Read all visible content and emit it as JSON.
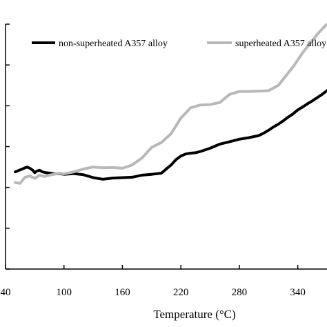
{
  "chart_data": {
    "type": "line",
    "title": "",
    "xlabel": "Temperature (°C)",
    "ylabel": "",
    "xlim": [
      40,
      370
    ],
    "ylim": [
      0,
      6
    ],
    "x_ticks": [
      40,
      100,
      160,
      220,
      280,
      340
    ],
    "x_tick_labels": [
      "40",
      "100",
      "160",
      "220",
      "280",
      "340"
    ],
    "y_ticks": [
      0,
      1,
      2,
      3,
      4,
      5,
      6
    ],
    "grid": false,
    "legend_position": "top",
    "series": [
      {
        "name": "non-superheated A357 alloy",
        "color": "#000000",
        "x": [
          50,
          54,
          58,
          62,
          65,
          68,
          70,
          72,
          75,
          78,
          82,
          86,
          90,
          95,
          100,
          110,
          120,
          130,
          140,
          150,
          160,
          170,
          180,
          190,
          200,
          205,
          210,
          215,
          220,
          225,
          230,
          235,
          240,
          250,
          260,
          270,
          280,
          290,
          300,
          305,
          310,
          315,
          320,
          325,
          330,
          335,
          340,
          345,
          350,
          355,
          360,
          365,
          370
        ],
        "y": [
          2.38,
          2.42,
          2.46,
          2.5,
          2.47,
          2.42,
          2.36,
          2.4,
          2.42,
          2.38,
          2.36,
          2.35,
          2.33,
          2.34,
          2.32,
          2.34,
          2.31,
          2.24,
          2.2,
          2.23,
          2.24,
          2.25,
          2.3,
          2.32,
          2.35,
          2.45,
          2.55,
          2.68,
          2.77,
          2.82,
          2.84,
          2.85,
          2.88,
          2.96,
          3.06,
          3.12,
          3.18,
          3.22,
          3.27,
          3.33,
          3.4,
          3.48,
          3.55,
          3.63,
          3.72,
          3.8,
          3.9,
          3.97,
          4.05,
          4.12,
          4.2,
          4.28,
          4.37
        ]
      },
      {
        "name": "superheated A357 alloy",
        "color": "#b8b8b8",
        "x": [
          50,
          55,
          60,
          65,
          70,
          75,
          80,
          85,
          90,
          95,
          100,
          110,
          120,
          130,
          140,
          150,
          160,
          170,
          180,
          190,
          200,
          210,
          220,
          230,
          240,
          250,
          260,
          270,
          280,
          290,
          300,
          310,
          320,
          325,
          330,
          335,
          340,
          345,
          350,
          355,
          360,
          365,
          370
        ],
        "y": [
          2.12,
          2.1,
          2.25,
          2.28,
          2.22,
          2.3,
          2.27,
          2.3,
          2.32,
          2.35,
          2.33,
          2.38,
          2.45,
          2.5,
          2.48,
          2.49,
          2.47,
          2.55,
          2.72,
          2.98,
          3.1,
          3.32,
          3.7,
          3.95,
          4.02,
          4.03,
          4.08,
          4.28,
          4.35,
          4.35,
          4.36,
          4.37,
          4.5,
          4.65,
          4.8,
          4.95,
          5.12,
          5.3,
          5.45,
          5.6,
          5.75,
          5.88,
          6.0
        ]
      }
    ]
  }
}
